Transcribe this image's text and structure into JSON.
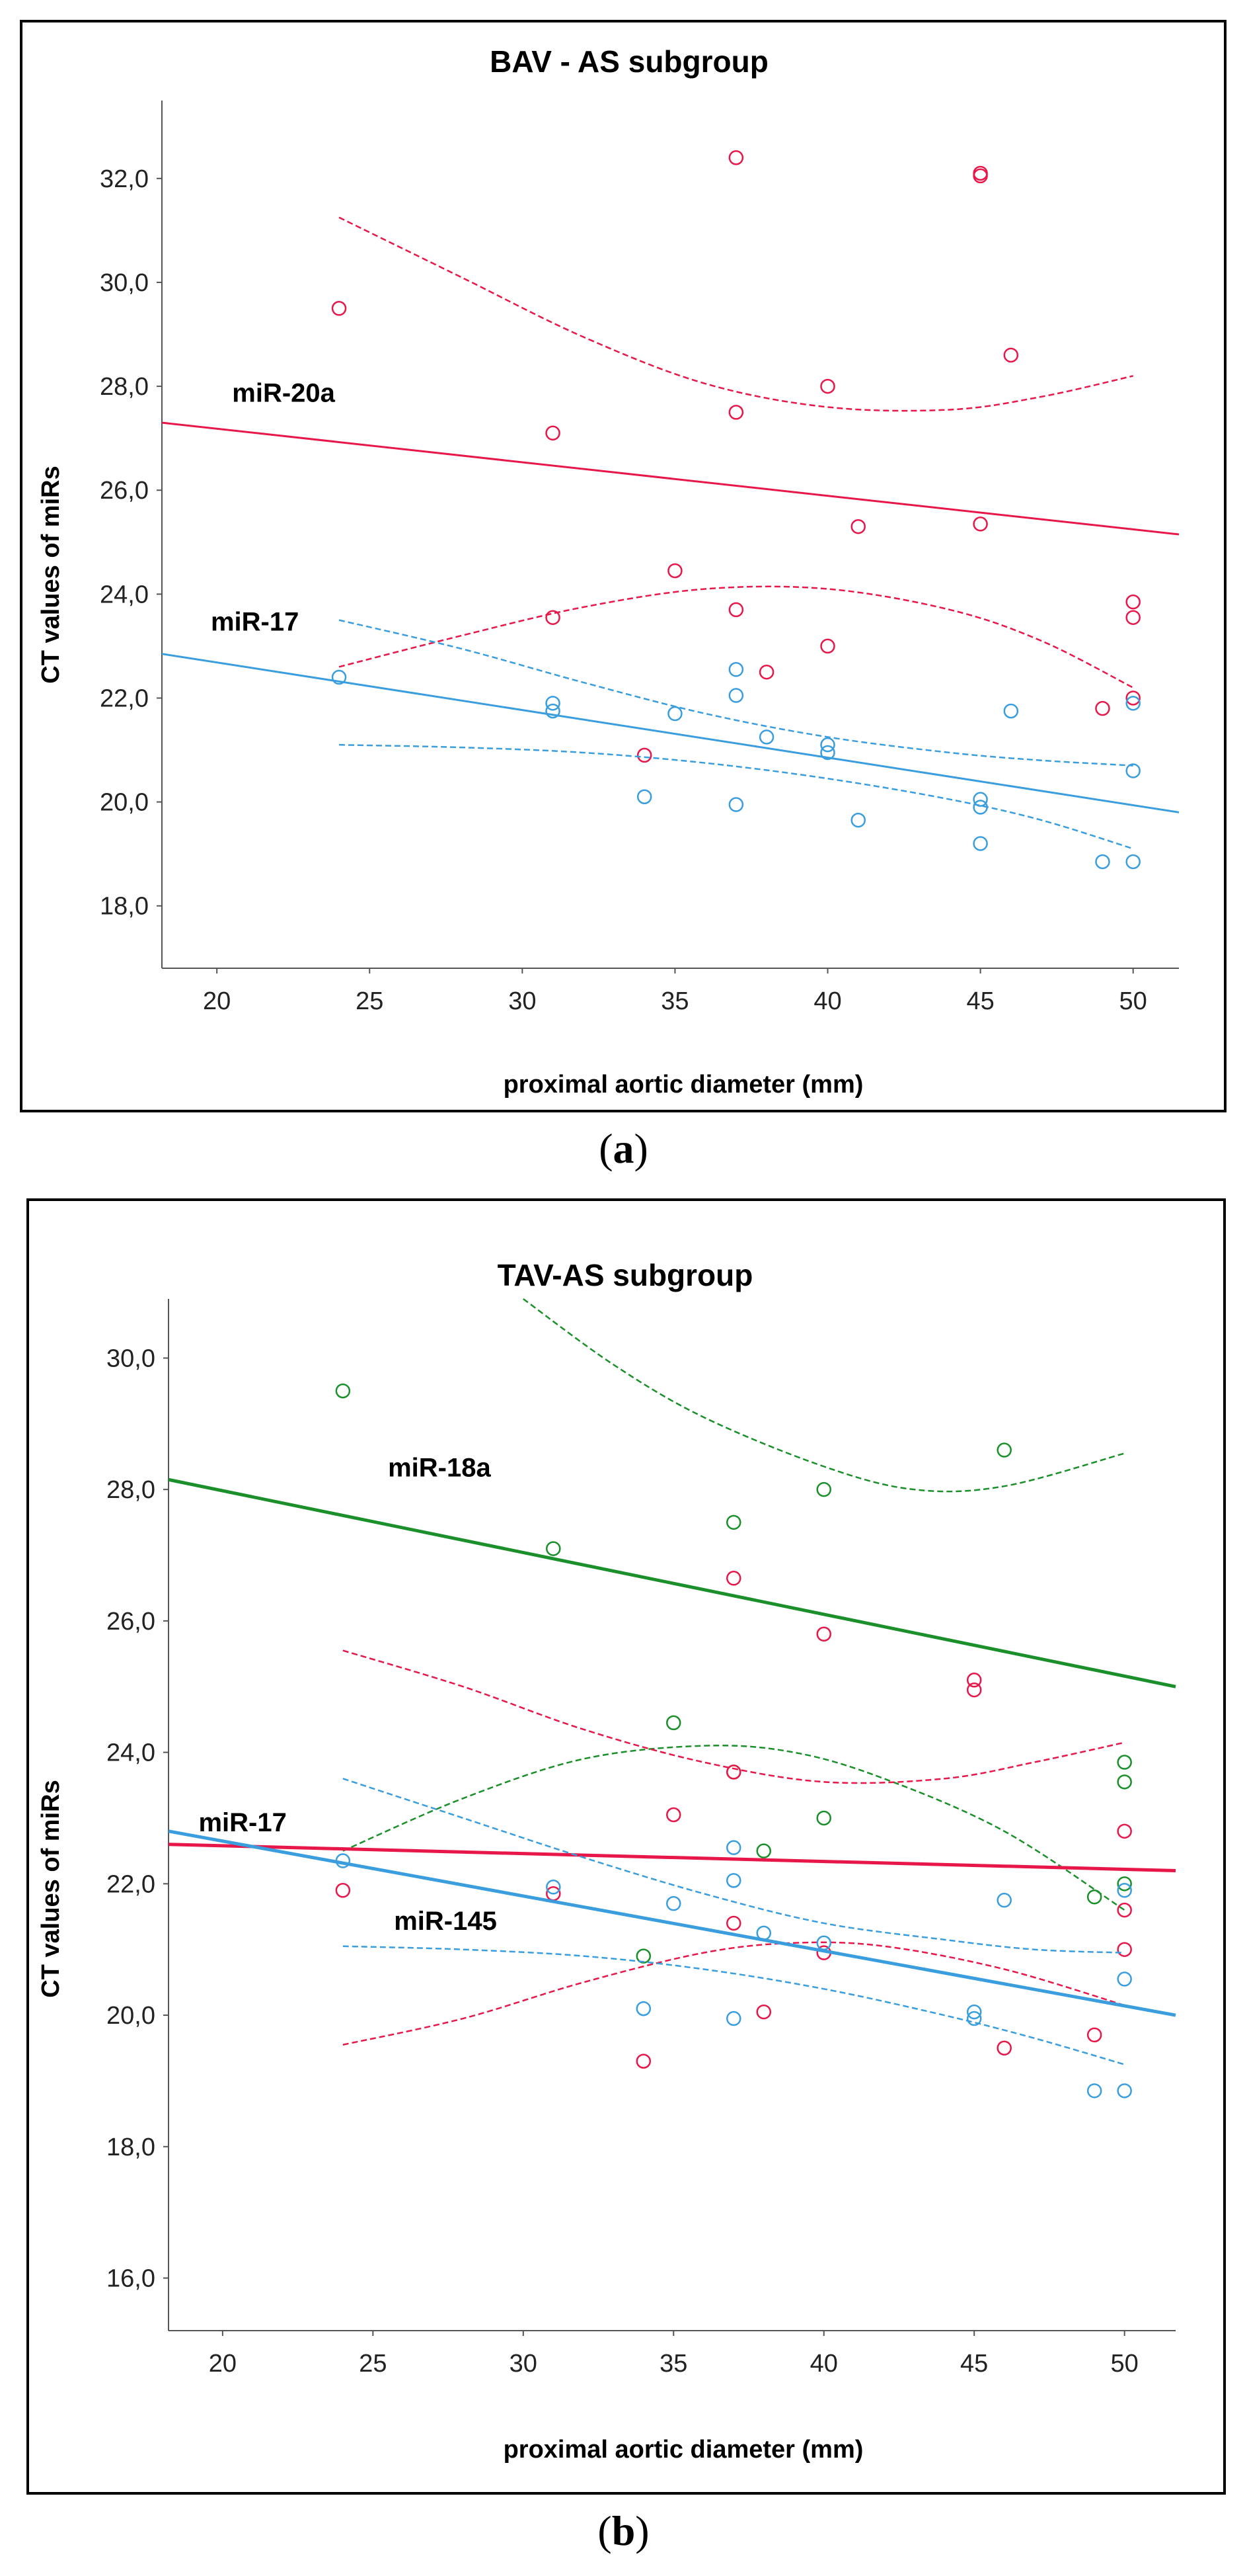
{
  "charts": [
    {
      "caption": {
        "open": "(",
        "letter": "a",
        "close": ")"
      },
      "chart_data": {
        "type": "scatter",
        "title": "BAV - AS subgroup",
        "xlabel": "proximal aortic diameter (mm)",
        "ylabel": "CT values of miRs",
        "xlim": [
          18.2,
          51.5
        ],
        "ylim": [
          16.8,
          33.5
        ],
        "xticks": [
          20,
          25,
          30,
          35,
          40,
          45,
          50
        ],
        "xtick_labels": [
          "20",
          "25",
          "30",
          "35",
          "40",
          "45",
          "50"
        ],
        "yticks": [
          18,
          20,
          22,
          24,
          26,
          28,
          30,
          32
        ],
        "ytick_labels": [
          "18,0",
          "20,0",
          "22,0",
          "24,0",
          "26,0",
          "28,0",
          "30,0",
          "32,0"
        ],
        "series": [
          {
            "name": "miR-20a",
            "color": "#e8174a",
            "label_at": [
              20.5,
              27.7
            ],
            "points": [
              [
                24,
                29.5
              ],
              [
                31,
                27.1
              ],
              [
                31,
                23.55
              ],
              [
                34,
                20.9
              ],
              [
                35,
                24.45
              ],
              [
                37,
                32.4
              ],
              [
                37,
                27.5
              ],
              [
                37,
                23.7
              ],
              [
                38,
                22.5
              ],
              [
                40,
                28.0
              ],
              [
                40,
                23.0
              ],
              [
                41,
                25.3
              ],
              [
                45,
                32.1
              ],
              [
                45,
                32.05
              ],
              [
                45,
                25.35
              ],
              [
                46,
                28.6
              ],
              [
                49,
                21.8
              ],
              [
                50,
                23.85
              ],
              [
                50,
                23.55
              ],
              [
                50,
                22.0
              ]
            ],
            "fit": [
              [
                18.2,
                27.3
              ],
              [
                51.5,
                25.15
              ]
            ],
            "ci_upper": [
              [
                24,
                31.25
              ],
              [
                28,
                30.1
              ],
              [
                32,
                28.95
              ],
              [
                36,
                28.05
              ],
              [
                40,
                27.6
              ],
              [
                44,
                27.55
              ],
              [
                47,
                27.8
              ],
              [
                50,
                28.2
              ]
            ],
            "ci_lower": [
              [
                24,
                22.6
              ],
              [
                28,
                23.2
              ],
              [
                32,
                23.75
              ],
              [
                36,
                24.1
              ],
              [
                40,
                24.1
              ],
              [
                44,
                23.7
              ],
              [
                47,
                23.1
              ],
              [
                50,
                22.2
              ]
            ]
          },
          {
            "name": "miR-17",
            "color": "#3a9ede",
            "label_at": [
              19.8,
              23.3
            ],
            "points": [
              [
                24,
                22.4
              ],
              [
                31,
                21.9
              ],
              [
                31,
                21.75
              ],
              [
                34,
                20.1
              ],
              [
                35,
                21.7
              ],
              [
                37,
                22.55
              ],
              [
                37,
                22.05
              ],
              [
                37,
                19.95
              ],
              [
                38,
                21.25
              ],
              [
                40,
                21.1
              ],
              [
                40,
                20.95
              ],
              [
                41,
                19.65
              ],
              [
                45,
                20.05
              ],
              [
                45,
                19.9
              ],
              [
                45,
                19.2
              ],
              [
                46,
                21.75
              ],
              [
                49,
                18.85
              ],
              [
                50,
                21.9
              ],
              [
                50,
                20.6
              ],
              [
                50,
                18.85
              ]
            ],
            "fit": [
              [
                18.2,
                22.85
              ],
              [
                51.5,
                19.8
              ]
            ],
            "ci_upper": [
              [
                24,
                23.5
              ],
              [
                28,
                22.95
              ],
              [
                32,
                22.3
              ],
              [
                36,
                21.7
              ],
              [
                40,
                21.25
              ],
              [
                44,
                20.95
              ],
              [
                47,
                20.8
              ],
              [
                50,
                20.7
              ]
            ],
            "ci_lower": [
              [
                24,
                21.1
              ],
              [
                28,
                21.05
              ],
              [
                32,
                20.95
              ],
              [
                36,
                20.75
              ],
              [
                40,
                20.45
              ],
              [
                44,
                20.05
              ],
              [
                47,
                19.65
              ],
              [
                50,
                19.1
              ]
            ]
          }
        ]
      }
    },
    {
      "caption": {
        "open": "(",
        "letter": "b",
        "close": ")"
      },
      "chart_data": {
        "type": "scatter",
        "title": "TAV-AS subgroup",
        "xlabel": "proximal aortic diameter (mm)",
        "ylabel": "CT values of miRs",
        "xlim": [
          18.2,
          51.7
        ],
        "ylim": [
          15.2,
          30.9
        ],
        "xticks": [
          20,
          25,
          30,
          35,
          40,
          45,
          50
        ],
        "xtick_labels": [
          "20",
          "25",
          "30",
          "35",
          "40",
          "45",
          "50"
        ],
        "yticks": [
          16,
          18,
          20,
          22,
          24,
          26,
          28,
          30
        ],
        "ytick_labels": [
          "16,0",
          "18,0",
          "20,0",
          "22,0",
          "24,0",
          "26,0",
          "28,0",
          "30,0"
        ],
        "series": [
          {
            "name": "miR-18a",
            "color": "#1a8f2a",
            "label_at": [
              25.5,
              28.2
            ],
            "points": [
              [
                24,
                29.5
              ],
              [
                31,
                27.1
              ],
              [
                34,
                20.9
              ],
              [
                35,
                24.45
              ],
              [
                37,
                27.5
              ],
              [
                37,
                23.7
              ],
              [
                38,
                22.5
              ],
              [
                40,
                28.0
              ],
              [
                40,
                23.0
              ],
              [
                46,
                28.6
              ],
              [
                49,
                21.8
              ],
              [
                50,
                23.85
              ],
              [
                50,
                23.55
              ],
              [
                50,
                22.0
              ]
            ],
            "fit": [
              [
                18.2,
                28.15
              ],
              [
                51.7,
                25.0
              ]
            ],
            "ci_upper": [
              [
                30,
                30.9
              ],
              [
                33,
                29.9
              ],
              [
                36,
                29.1
              ],
              [
                40,
                28.35
              ],
              [
                43,
                28.0
              ],
              [
                46,
                28.05
              ],
              [
                50,
                28.55
              ]
            ],
            "ci_lower": [
              [
                24,
                22.5
              ],
              [
                28,
                23.3
              ],
              [
                32,
                23.9
              ],
              [
                36,
                24.1
              ],
              [
                39,
                24.0
              ],
              [
                42,
                23.6
              ],
              [
                46,
                22.8
              ],
              [
                50,
                21.6
              ]
            ]
          },
          {
            "name": "miR-17",
            "color": "#e8174a",
            "label_at": [
              19.2,
              22.8
            ],
            "points": [
              [
                24,
                21.9
              ],
              [
                31,
                21.85
              ],
              [
                34,
                19.3
              ],
              [
                35,
                23.05
              ],
              [
                37,
                26.65
              ],
              [
                37,
                23.7
              ],
              [
                37,
                21.4
              ],
              [
                38,
                20.05
              ],
              [
                40,
                25.8
              ],
              [
                40,
                20.95
              ],
              [
                45,
                25.1
              ],
              [
                45,
                24.95
              ],
              [
                46,
                19.5
              ],
              [
                49,
                19.7
              ],
              [
                50,
                22.8
              ],
              [
                50,
                21.6
              ],
              [
                50,
                21.0
              ]
            ],
            "fit": [
              [
                18.2,
                22.6
              ],
              [
                51.7,
                22.2
              ]
            ],
            "ci_upper": [
              [
                24,
                25.55
              ],
              [
                28,
                25.0
              ],
              [
                32,
                24.35
              ],
              [
                36,
                23.85
              ],
              [
                40,
                23.55
              ],
              [
                44,
                23.6
              ],
              [
                47,
                23.85
              ],
              [
                50,
                24.15
              ]
            ],
            "ci_lower": [
              [
                24,
                19.55
              ],
              [
                28,
                19.95
              ],
              [
                32,
                20.5
              ],
              [
                36,
                20.95
              ],
              [
                39,
                21.1
              ],
              [
                42,
                21.05
              ],
              [
                46,
                20.7
              ],
              [
                50,
                20.15
              ]
            ]
          },
          {
            "name": "miR-145",
            "color": "#3a9ede",
            "label_at": [
              25.7,
              21.3
            ],
            "points": [
              [
                24,
                22.35
              ],
              [
                31,
                21.95
              ],
              [
                34,
                20.1
              ],
              [
                35,
                21.7
              ],
              [
                37,
                22.55
              ],
              [
                37,
                22.05
              ],
              [
                37,
                19.95
              ],
              [
                38,
                21.25
              ],
              [
                40,
                21.1
              ],
              [
                45,
                20.05
              ],
              [
                45,
                19.95
              ],
              [
                46,
                21.75
              ],
              [
                49,
                18.85
              ],
              [
                50,
                21.9
              ],
              [
                50,
                20.55
              ],
              [
                50,
                18.85
              ]
            ],
            "fit": [
              [
                18.2,
                22.8
              ],
              [
                51.7,
                20.0
              ]
            ],
            "ci_upper": [
              [
                24,
                23.6
              ],
              [
                28,
                23.0
              ],
              [
                32,
                22.4
              ],
              [
                36,
                21.85
              ],
              [
                40,
                21.4
              ],
              [
                44,
                21.15
              ],
              [
                47,
                21.0
              ],
              [
                50,
                20.95
              ]
            ],
            "ci_lower": [
              [
                24,
                21.05
              ],
              [
                28,
                21.0
              ],
              [
                32,
                20.9
              ],
              [
                36,
                20.7
              ],
              [
                40,
                20.4
              ],
              [
                44,
                20.0
              ],
              [
                47,
                19.65
              ],
              [
                50,
                19.25
              ]
            ]
          }
        ]
      }
    }
  ]
}
